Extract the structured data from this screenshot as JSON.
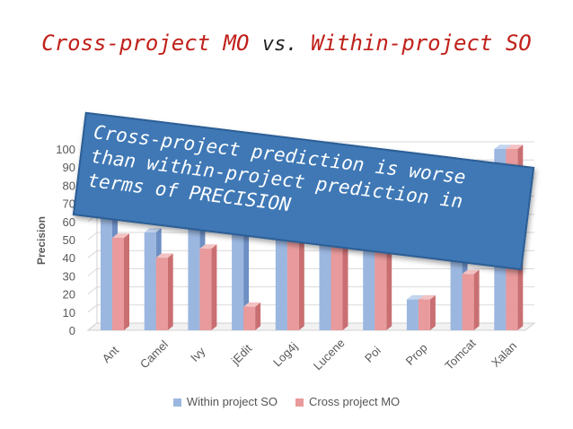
{
  "title": {
    "part1": "Cross-project MO",
    "vs": "vs.",
    "part2": "Within-project SO"
  },
  "callout": {
    "text": "Cross-project prediction is worse than within-project prediction in terms of PRECISION"
  },
  "colors": {
    "title": "#c0201a",
    "series_within": "#9bb7e0",
    "series_cross": "#e89a9c",
    "callout_bg": "#3f78b5"
  },
  "chart_data": {
    "type": "bar",
    "style": "3d-clustered",
    "ylabel": "Precision",
    "xlabel": "",
    "ylim": [
      0,
      100
    ],
    "yticks": [
      0,
      10,
      20,
      30,
      40,
      50,
      60,
      70,
      80,
      90,
      100
    ],
    "grid": true,
    "legend": "bottom",
    "categories": [
      "Ant",
      "Camel",
      "Ivy",
      "jEdit",
      "Log4j",
      "Lucene",
      "Poi",
      "Prop",
      "Tomcat",
      "Xalan"
    ],
    "series": [
      {
        "name": "Within project SO",
        "values": [
          68,
          54,
          66,
          62,
          92,
          60,
          78,
          17,
          65,
          100
        ]
      },
      {
        "name": "Cross project MO",
        "values": [
          51,
          40,
          45,
          13,
          92,
          87,
          80,
          17,
          31,
          100
        ]
      }
    ]
  }
}
